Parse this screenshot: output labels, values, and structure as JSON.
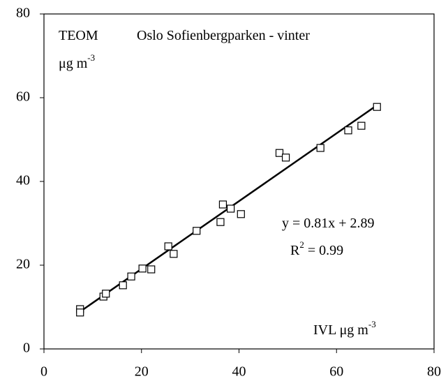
{
  "chart_data": {
    "type": "scatter",
    "annotations": [
      {
        "text": "TEOM"
      },
      {
        "text": "Oslo Sofienbergparken - vinter"
      },
      {
        "text": "μg m",
        "sup": "-3"
      },
      {
        "text": "y = 0.81x + 2.89"
      },
      {
        "text": "R",
        "sup": "2",
        "rest": " = 0.99"
      },
      {
        "text": "IVL μg m",
        "sup": "-3"
      }
    ],
    "x": [
      7.4,
      7.4,
      12.2,
      12.7,
      16.2,
      17.9,
      20.2,
      22,
      25.5,
      26.6,
      31.3,
      36.2,
      36.7,
      38.3,
      40.4,
      48.3,
      49.6,
      56.7,
      62.4,
      65.1,
      68.3
    ],
    "series": [
      {
        "name": "TEOM",
        "color": "#000000",
        "values": [
          9.5,
          8.7,
          12.5,
          13.2,
          15.2,
          17.3,
          19.2,
          19,
          24.5,
          22.7,
          28.2,
          30.3,
          34.5,
          33.5,
          32.2,
          46.8,
          45.7,
          48,
          52.2,
          53.3,
          57.8
        ]
      }
    ],
    "trendline": {
      "x": [
        7.4,
        68.3
      ],
      "y": [
        8.9,
        58.2
      ],
      "color": "#000000"
    },
    "xlim": [
      0,
      80
    ],
    "ylim": [
      0,
      80
    ],
    "xticks": [
      0,
      20,
      40,
      60,
      80
    ],
    "yticks": [
      0,
      20,
      40,
      60,
      80
    ]
  }
}
